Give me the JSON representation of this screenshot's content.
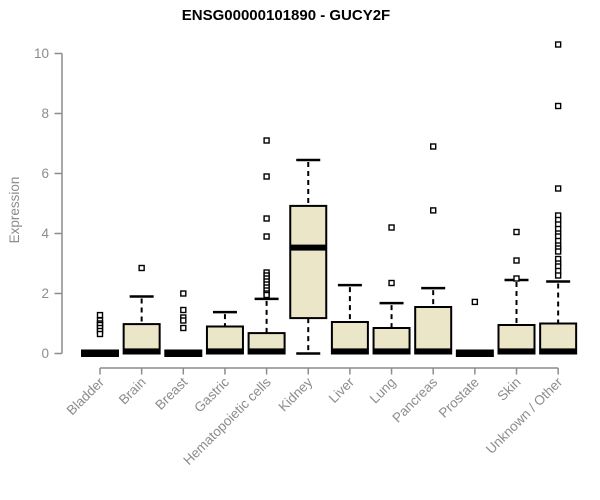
{
  "chart_data": {
    "type": "boxplot",
    "title": "ENSG00000101890 - GUCY2F",
    "ylabel": "Expression",
    "xlabel": "",
    "ylim": [
      0,
      10.4
    ],
    "yticks": [
      0,
      2,
      4,
      6,
      8,
      10
    ],
    "grid": false,
    "legend": "none",
    "categories": [
      "Bladder",
      "Brain",
      "Breast",
      "Gastric",
      "Hematopoietic cells",
      "Kidney",
      "Liver",
      "Lung",
      "Pancreas",
      "Prostate",
      "Skin",
      "Unknown / Other"
    ],
    "series": [
      {
        "category": "Bladder",
        "flat": true,
        "q1": 0,
        "median": 0,
        "q3": 0,
        "whisker_low": 0,
        "whisker_high": 0,
        "outliers": [
          1.28,
          1.1,
          1.0,
          0.95,
          0.85,
          0.75,
          0.65
        ]
      },
      {
        "category": "Brain",
        "flat": false,
        "q1": 0,
        "median": 0.07,
        "q3": 0.98,
        "whisker_low": 0,
        "whisker_high": 1.9,
        "outliers": [
          2.85
        ]
      },
      {
        "category": "Breast",
        "flat": true,
        "q1": 0,
        "median": 0,
        "q3": 0,
        "whisker_low": 0,
        "whisker_high": 0,
        "outliers": [
          2.0,
          1.45,
          1.2,
          1.1,
          0.85
        ]
      },
      {
        "category": "Gastric",
        "flat": false,
        "q1": 0,
        "median": 0.07,
        "q3": 0.9,
        "whisker_low": 0,
        "whisker_high": 1.38,
        "outliers": []
      },
      {
        "category": "Hematopoietic cells",
        "flat": false,
        "q1": 0,
        "median": 0.07,
        "q3": 0.68,
        "whisker_low": 0,
        "whisker_high": 1.82,
        "outliers": [
          7.1,
          5.9,
          4.5,
          3.9,
          2.7,
          2.6,
          2.5,
          2.4,
          2.3,
          2.2,
          2.1,
          2.0,
          1.95
        ]
      },
      {
        "category": "Kidney",
        "flat": false,
        "q1": 1.18,
        "median": 3.53,
        "q3": 4.92,
        "whisker_low": 0,
        "whisker_high": 6.45,
        "outliers": []
      },
      {
        "category": "Liver",
        "flat": false,
        "q1": 0,
        "median": 0.07,
        "q3": 1.05,
        "whisker_low": 0,
        "whisker_high": 2.28,
        "outliers": []
      },
      {
        "category": "Lung",
        "flat": false,
        "q1": 0,
        "median": 0.07,
        "q3": 0.85,
        "whisker_low": 0,
        "whisker_high": 1.68,
        "outliers": [
          4.2,
          2.35
        ]
      },
      {
        "category": "Pancreas",
        "flat": false,
        "q1": 0,
        "median": 0.07,
        "q3": 1.55,
        "whisker_low": 0,
        "whisker_high": 2.18,
        "outliers": [
          6.9,
          4.77
        ]
      },
      {
        "category": "Prostate",
        "flat": true,
        "q1": 0,
        "median": 0,
        "q3": 0,
        "whisker_low": 0,
        "whisker_high": 0,
        "outliers": [
          1.72
        ]
      },
      {
        "category": "Skin",
        "flat": false,
        "q1": 0,
        "median": 0.07,
        "q3": 0.95,
        "whisker_low": 0,
        "whisker_high": 2.45,
        "outliers": [
          4.05,
          3.1,
          2.5
        ]
      },
      {
        "category": "Unknown / Other",
        "flat": false,
        "q1": 0,
        "median": 0.07,
        "q3": 1.0,
        "whisker_low": 0,
        "whisker_high": 2.4,
        "outliers": [
          10.3,
          8.25,
          5.5,
          4.6,
          4.45,
          4.3,
          4.15,
          4.0,
          3.9,
          3.75,
          3.6,
          3.5,
          3.4,
          3.15,
          3.0,
          2.9,
          2.75,
          2.6
        ]
      }
    ],
    "colors": {
      "box_fill": "#ECE6C9",
      "box_stroke": "#000000",
      "median": "#000000",
      "axis": "#8C8C8C",
      "title": "#000000",
      "background": "#FFFFFF"
    }
  }
}
